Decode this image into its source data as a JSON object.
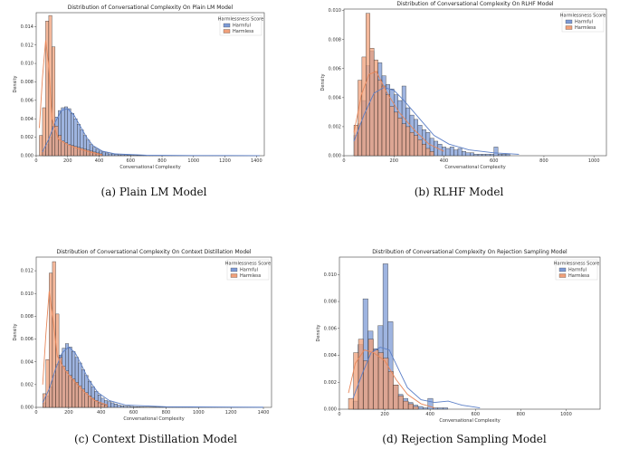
{
  "legend_title": "Harmlessness Score",
  "colors": {
    "harmful": "#5b7fc7",
    "harmless": "#e8875a",
    "harmful_fill": "#7d9bd6",
    "harmless_fill": "#f0a07a"
  },
  "chart_data": [
    {
      "id": "a",
      "type": "histogram",
      "title": "Distribution of Conversational Complexity On Plain LM Model",
      "caption": "(a) Plain LM Model",
      "xlabel": "Conversational Complexity",
      "ylabel": "Density",
      "xlim": [
        0,
        1450
      ],
      "ylim": [
        0,
        0.0155
      ],
      "xticks": [
        0,
        200,
        400,
        600,
        800,
        1000,
        1200,
        1400
      ],
      "yticks": [
        0.0,
        0.002,
        0.004,
        0.006,
        0.008,
        0.01,
        0.012,
        0.014
      ],
      "ytick_labels": [
        "0.000",
        "0.002",
        "0.004",
        "0.006",
        "0.008",
        "0.010",
        "0.012",
        "0.014"
      ],
      "legend": [
        "Harmful",
        "Harmless"
      ],
      "bin_width": 20,
      "series": [
        {
          "name": "Harmful",
          "bins_start": 40,
          "values": [
            0.0005,
            0.0012,
            0.002,
            0.0032,
            0.0042,
            0.0049,
            0.0052,
            0.0053,
            0.0051,
            0.0046,
            0.004,
            0.0034,
            0.0028,
            0.0022,
            0.0017,
            0.0012,
            0.0009,
            0.0007,
            0.0005,
            0.0004,
            0.0003,
            0.0002,
            0.0002,
            0.00015,
            0.0001,
            0.0001,
            0.0001,
            8e-05,
            5e-05,
            5e-05,
            4e-05,
            3e-05,
            2e-05,
            2e-05,
            2e-05,
            2e-05,
            1e-05,
            1e-05,
            1e-05,
            1e-05,
            1e-05,
            1e-05,
            1e-05,
            1e-05,
            1e-05,
            1e-05,
            1e-05,
            1e-05,
            1e-05,
            1e-05,
            1e-05,
            1e-05,
            1e-05,
            1e-05,
            1e-05,
            1e-05,
            1e-05,
            1e-05,
            1e-05,
            1e-05,
            1e-05,
            1e-05,
            1e-05,
            1e-05,
            1e-05,
            1e-05,
            1e-05,
            1e-05,
            1e-05
          ],
          "kde": [
            [
              40,
              0.0004
            ],
            [
              80,
              0.0018
            ],
            [
              120,
              0.0036
            ],
            [
              160,
              0.0049
            ],
            [
              200,
              0.0051
            ],
            [
              240,
              0.0044
            ],
            [
              280,
              0.0032
            ],
            [
              320,
              0.002
            ],
            [
              360,
              0.0011
            ],
            [
              420,
              0.0005
            ],
            [
              500,
              0.0002
            ],
            [
              700,
              5e-05
            ],
            [
              1000,
              2e-05
            ],
            [
              1420,
              1e-05
            ]
          ]
        },
        {
          "name": "Harmless",
          "bins_start": 20,
          "values": [
            0.0022,
            0.0052,
            0.0146,
            0.0152,
            0.0118,
            0.0032,
            0.0022,
            0.0016,
            0.0014,
            0.0012,
            0.0011,
            0.001,
            0.0009,
            0.0008,
            0.0007,
            0.0006,
            0.0005,
            0.0004,
            0.0003,
            0.0002
          ],
          "kde": [
            [
              20,
              0.003
            ],
            [
              40,
              0.0085
            ],
            [
              60,
              0.0125
            ],
            [
              80,
              0.0098
            ],
            [
              100,
              0.004
            ],
            [
              140,
              0.0018
            ],
            [
              200,
              0.0012
            ],
            [
              260,
              0.0008
            ],
            [
              340,
              0.0004
            ],
            [
              420,
              0.0001
            ]
          ]
        }
      ]
    },
    {
      "id": "b",
      "type": "histogram",
      "title": "Distribution of Conversational Complexity On RLHF Model",
      "caption": "(b) RLHF Model",
      "xlabel": "Conversational Complexity",
      "ylabel": "Density",
      "xlim": [
        0,
        1050
      ],
      "ylim": [
        0,
        0.0101
      ],
      "xticks": [
        0,
        200,
        400,
        600,
        800,
        1000
      ],
      "yticks": [
        0.0,
        0.002,
        0.004,
        0.006,
        0.008,
        0.01
      ],
      "ytick_labels": [
        "0.000",
        "0.002",
        "0.004",
        "0.006",
        "0.008",
        "0.010"
      ],
      "legend": [
        "Harmful",
        "Harmless"
      ],
      "bin_width": 16,
      "series": [
        {
          "name": "Harmful",
          "bins_start": 40,
          "values": [
            0.0014,
            0.0022,
            0.0038,
            0.0062,
            0.0072,
            0.0058,
            0.0064,
            0.0055,
            0.0049,
            0.0046,
            0.0042,
            0.0038,
            0.0048,
            0.0033,
            0.0028,
            0.0025,
            0.0021,
            0.0018,
            0.0016,
            0.0012,
            0.001,
            0.0008,
            0.0006,
            0.0005,
            0.0006,
            0.0004,
            0.0005,
            0.0003,
            0.0002,
            0.0002,
            0.0001,
            0.0001,
            0.0001,
            0.0001,
            0.0001,
            0.0006,
            0.0001,
            0.0001,
            0.0001
          ],
          "kde": [
            [
              40,
              0.001
            ],
            [
              80,
              0.0028
            ],
            [
              120,
              0.0043
            ],
            [
              160,
              0.0047
            ],
            [
              200,
              0.0045
            ],
            [
              240,
              0.0038
            ],
            [
              300,
              0.0026
            ],
            [
              360,
              0.0014
            ],
            [
              420,
              0.0008
            ],
            [
              500,
              0.0004
            ],
            [
              600,
              0.0002
            ],
            [
              700,
              0.0001
            ]
          ]
        },
        {
          "name": "Harmless",
          "bins_start": 40,
          "values": [
            0.0021,
            0.0052,
            0.0068,
            0.0098,
            0.0074,
            0.0066,
            0.0052,
            0.0048,
            0.0042,
            0.0034,
            0.003,
            0.0026,
            0.0022,
            0.002,
            0.0016,
            0.0014,
            0.0011,
            0.0008,
            0.0005,
            0.0003
          ],
          "kde": [
            [
              40,
              0.0016
            ],
            [
              70,
              0.0042
            ],
            [
              100,
              0.0056
            ],
            [
              130,
              0.0058
            ],
            [
              170,
              0.0044
            ],
            [
              220,
              0.003
            ],
            [
              280,
              0.0018
            ],
            [
              340,
              0.0008
            ],
            [
              400,
              0.0003
            ]
          ]
        }
      ]
    },
    {
      "id": "c",
      "type": "histogram",
      "title": "Distribution of Conversational Complexity On Context Distillation Model",
      "caption": "(c) Context Distillation Model",
      "xlabel": "Conversational Complexity",
      "ylabel": "Density",
      "xlim": [
        0,
        1450
      ],
      "ylim": [
        0,
        0.0132
      ],
      "xticks": [
        0,
        200,
        400,
        600,
        800,
        1000,
        1200,
        1400
      ],
      "yticks": [
        0.0,
        0.002,
        0.004,
        0.006,
        0.008,
        0.01,
        0.012
      ],
      "ytick_labels": [
        "0.000",
        "0.002",
        "0.004",
        "0.006",
        "0.008",
        "0.010",
        "0.012"
      ],
      "legend": [
        "Harmful",
        "Harmless"
      ],
      "bin_width": 20,
      "series": [
        {
          "name": "Harmful",
          "bins_start": 40,
          "values": [
            0.0004,
            0.001,
            0.0018,
            0.0028,
            0.0038,
            0.0046,
            0.0052,
            0.0056,
            0.0053,
            0.0049,
            0.0044,
            0.0039,
            0.0033,
            0.0028,
            0.0023,
            0.0018,
            0.0014,
            0.0011,
            0.0008,
            0.0006,
            0.0005,
            0.0004,
            0.0003,
            0.0002,
            0.00015,
            0.0001,
            0.0001,
            8e-05,
            6e-05,
            5e-05,
            4e-05,
            3e-05,
            2e-05,
            2e-05,
            2e-05,
            1e-05,
            1e-05,
            1e-05,
            1e-05,
            1e-05,
            1e-05,
            1e-05,
            1e-05,
            1e-05,
            1e-05,
            1e-05,
            1e-05,
            1e-05,
            1e-05,
            1e-05,
            1e-05,
            1e-05,
            1e-05,
            1e-05,
            1e-05,
            1e-05,
            1e-05,
            1e-05,
            1e-05,
            1e-05,
            1e-05,
            1e-05,
            1e-05,
            1e-05,
            1e-05,
            1e-05,
            1e-05,
            1e-05
          ],
          "kde": [
            [
              40,
              0.0004
            ],
            [
              80,
              0.0016
            ],
            [
              120,
              0.0034
            ],
            [
              160,
              0.0048
            ],
            [
              200,
              0.0053
            ],
            [
              240,
              0.0048
            ],
            [
              280,
              0.0037
            ],
            [
              320,
              0.0025
            ],
            [
              380,
              0.0013
            ],
            [
              450,
              0.0006
            ],
            [
              550,
              0.0002
            ],
            [
              800,
              5e-05
            ],
            [
              1400,
              1e-05
            ]
          ]
        },
        {
          "name": "Harmless",
          "bins_start": 40,
          "values": [
            0.0012,
            0.0042,
            0.0118,
            0.0128,
            0.0082,
            0.0044,
            0.0036,
            0.0032,
            0.0028,
            0.0025,
            0.0022,
            0.0019,
            0.0016,
            0.0013,
            0.001,
            0.0008,
            0.0006,
            0.0004,
            0.0003,
            0.0002
          ],
          "kde": [
            [
              40,
              0.002
            ],
            [
              60,
              0.0065
            ],
            [
              80,
              0.0102
            ],
            [
              100,
              0.0082
            ],
            [
              130,
              0.0045
            ],
            [
              180,
              0.0032
            ],
            [
              240,
              0.0022
            ],
            [
              300,
              0.0013
            ],
            [
              360,
              0.0006
            ],
            [
              440,
              0.0002
            ]
          ]
        }
      ]
    },
    {
      "id": "d",
      "type": "histogram",
      "title": "Distribution of Conversational Complexity On Rejection Sampling Model",
      "caption": "(d) Rejection Sampling Model",
      "xlabel": "Conversational Complexity",
      "ylabel": "Density",
      "xlim": [
        0,
        1150
      ],
      "ylim": [
        0,
        0.0113
      ],
      "xticks": [
        0,
        200,
        400,
        600,
        800,
        1000
      ],
      "yticks": [
        0.0,
        0.002,
        0.004,
        0.006,
        0.008,
        0.01
      ],
      "ytick_labels": [
        "0.000",
        "0.002",
        "0.004",
        "0.006",
        "0.008",
        "0.010"
      ],
      "legend": [
        "Harmful",
        "Harmless"
      ],
      "bin_width": 22,
      "series": [
        {
          "name": "Harmful",
          "bins_start": 60,
          "values": [
            0.0006,
            0.0048,
            0.0082,
            0.0058,
            0.0045,
            0.0062,
            0.0108,
            0.0065,
            0.0018,
            0.0011,
            0.0008,
            0.0005,
            0.0003,
            0.0002,
            0.0001,
            0.0008,
            0.0001,
            0.0001,
            0.0001
          ],
          "kde": [
            [
              60,
              0.0008
            ],
            [
              100,
              0.0026
            ],
            [
              140,
              0.0042
            ],
            [
              180,
              0.0046
            ],
            [
              220,
              0.0044
            ],
            [
              260,
              0.003
            ],
            [
              300,
              0.0016
            ],
            [
              360,
              0.0007
            ],
            [
              420,
              0.0005
            ],
            [
              480,
              0.0006
            ],
            [
              540,
              0.0003
            ],
            [
              620,
              0.0001
            ]
          ]
        },
        {
          "name": "Harmless",
          "bins_start": 40,
          "values": [
            0.0008,
            0.0042,
            0.0052,
            0.0036,
            0.0052,
            0.0044,
            0.0042,
            0.0038,
            0.0028,
            0.0018,
            0.001,
            0.0006,
            0.0004,
            0.0002
          ],
          "kde": [
            [
              40,
              0.0012
            ],
            [
              70,
              0.0034
            ],
            [
              110,
              0.0044
            ],
            [
              150,
              0.0042
            ],
            [
              200,
              0.0036
            ],
            [
              250,
              0.0022
            ],
            [
              300,
              0.0011
            ],
            [
              360,
              0.0004
            ],
            [
              420,
              0.0001
            ]
          ]
        }
      ]
    }
  ]
}
